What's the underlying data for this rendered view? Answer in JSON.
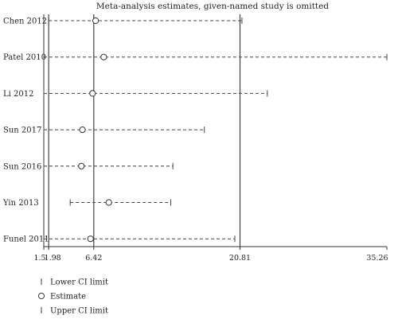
{
  "chart_data": {
    "type": "forest",
    "title": "Meta-analysis estimates, given-named study is omitted",
    "xlabel": "",
    "ylabel": "",
    "xticks": [
      1.5,
      1.98,
      6.42,
      20.81,
      35.26
    ],
    "xtick_labels": [
      "1.5",
      "1.98",
      "6.42",
      "20.81",
      "35.26"
    ],
    "reference_lines": [
      1.98,
      6.42,
      20.81
    ],
    "xlim": [
      1.5,
      35.26
    ],
    "studies": [
      {
        "label": "Chen 2012",
        "lower": 1.98,
        "estimate": 6.6,
        "upper": 21.0
      },
      {
        "label": "Patel 2010",
        "lower": 1.5,
        "estimate": 7.4,
        "upper": 35.26
      },
      {
        "label": "Li 2012",
        "lower": 1.5,
        "estimate": 6.3,
        "upper": 23.5
      },
      {
        "label": "Sun 2017",
        "lower": 1.5,
        "estimate": 5.3,
        "upper": 17.3
      },
      {
        "label": "Sun 2016",
        "lower": 1.5,
        "estimate": 5.2,
        "upper": 14.2
      },
      {
        "label": "Yin 2013",
        "lower": 4.1,
        "estimate": 7.9,
        "upper": 14.0
      },
      {
        "label": "Funel 2011",
        "lower": 1.5,
        "estimate": 6.1,
        "upper": 20.3
      }
    ],
    "legend": {
      "position": "bottom-left",
      "entries": [
        {
          "symbol": "tick",
          "label": "Lower CI limit"
        },
        {
          "symbol": "circle",
          "label": "Estimate"
        },
        {
          "symbol": "tick",
          "label": "Upper CI limit"
        }
      ]
    }
  }
}
